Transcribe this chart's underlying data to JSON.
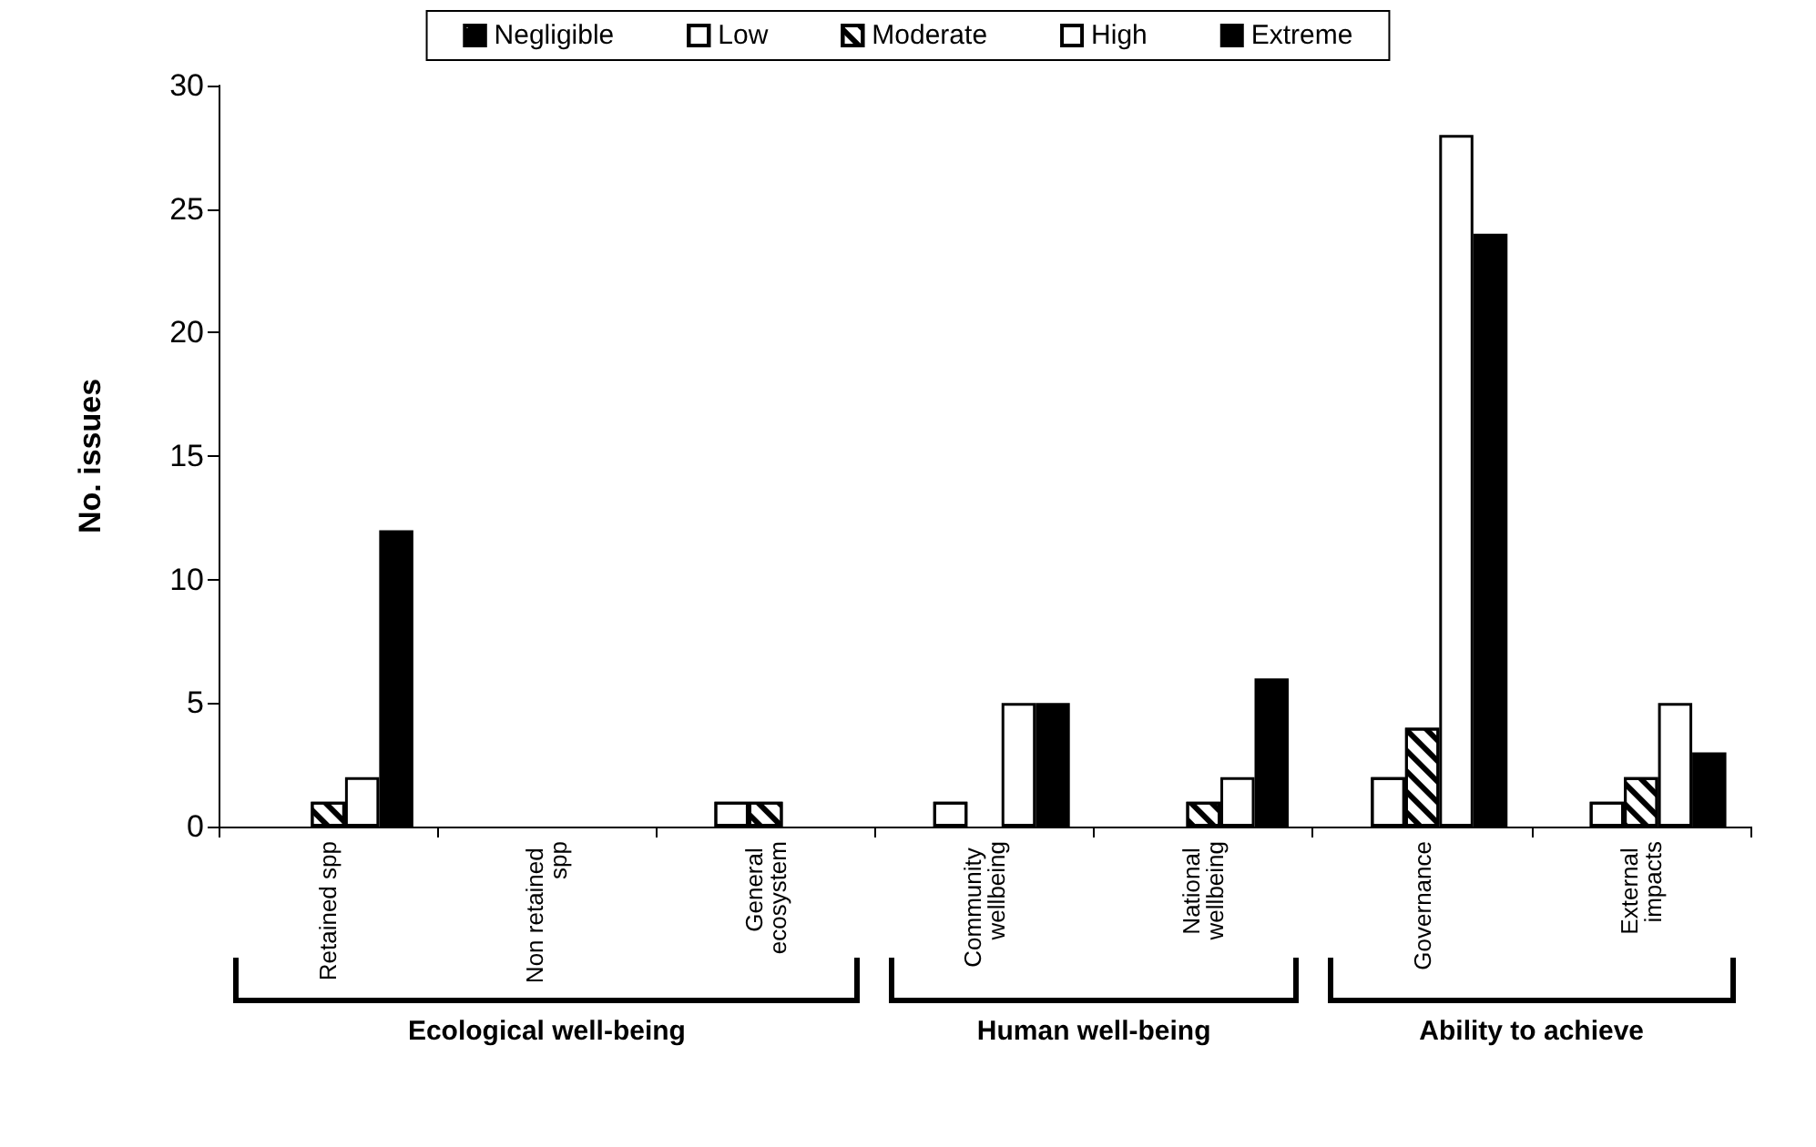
{
  "chart_data": {
    "type": "bar",
    "ylabel": "No. issues",
    "categories": [
      "Retained spp",
      "Non retained spp",
      "General ecosystem",
      "Community wellbeing",
      "National wellbeing",
      "Governance",
      "External impacts"
    ],
    "series": [
      {
        "name": "Negligible",
        "color": "#000000",
        "values": [
          0,
          0,
          0,
          0,
          0,
          0,
          0
        ]
      },
      {
        "name": "Low",
        "color": "#ffffff",
        "values": [
          0,
          0,
          1,
          1,
          0,
          2,
          1
        ]
      },
      {
        "name": "Moderate",
        "color": "#ffffff",
        "values": [
          1,
          0,
          1,
          0,
          1,
          4,
          2
        ]
      },
      {
        "name": "High",
        "color": "#ffffff",
        "values": [
          2,
          0,
          0,
          5,
          2,
          28,
          5
        ]
      },
      {
        "name": "Extreme",
        "color": "#000000",
        "values": [
          12,
          0,
          0,
          5,
          6,
          24,
          3
        ]
      }
    ],
    "ylim": [
      0,
      30
    ],
    "yticks": [
      0,
      5,
      10,
      15,
      20,
      25,
      30
    ],
    "grid": false,
    "legend": "top",
    "annotations": [
      "Ecological well-being",
      "Human well-being",
      "Ability to achieve"
    ]
  }
}
